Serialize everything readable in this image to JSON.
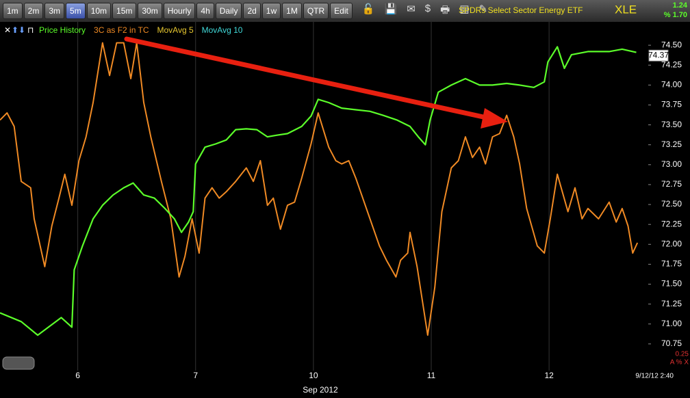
{
  "toolbar": {
    "buttons": [
      "1m",
      "2m",
      "3m",
      "5m",
      "10m",
      "15m",
      "30m",
      "Hourly",
      "4h",
      "Daily",
      "2d",
      "1w",
      "1M",
      "QTR",
      "Edit"
    ],
    "active": "5m"
  },
  "chart_data": {
    "type": "line",
    "title": "SPDRs Select Sector Energy ETF",
    "symbol": "XLE",
    "change": "1.24",
    "change_pct": "% 1.70",
    "x_label": "Sep 2012",
    "timestamp": "9/12/12 2:40",
    "lower_scale": "0.25",
    "lower_icons": "A % X",
    "last_price": 74.37,
    "grid": "x",
    "xlim": [
      0.34,
      5.83
    ],
    "xticks": [
      {
        "value": 1,
        "label": "6"
      },
      {
        "value": 2,
        "label": "7"
      },
      {
        "value": 3,
        "label": "10"
      },
      {
        "value": 4,
        "label": "11"
      },
      {
        "value": 5,
        "label": "12"
      }
    ],
    "ylim": [
      70.5,
      74.75
    ],
    "yticks": [
      {
        "value": 70.75,
        "label": "70.75"
      },
      {
        "value": 71,
        "label": "71.00"
      },
      71.25,
      {
        "value": 71.5,
        "label": "71.50"
      },
      71.75,
      {
        "value": 72,
        "label": "72.00"
      },
      72.25,
      {
        "value": 72.5,
        "label": "72.50"
      },
      72.75,
      {
        "value": 73,
        "label": "73.00"
      },
      73.25,
      {
        "value": 73.5,
        "label": "73.50"
      },
      73.75,
      {
        "value": 74,
        "label": "74.00"
      },
      74.25,
      {
        "value": 74.5,
        "label": "74.50"
      }
    ],
    "series": [
      {
        "name": "Price History",
        "color": "#5cff2a",
        "x": [
          0.34,
          0.52,
          0.66,
          0.86,
          0.95,
          0.97,
          1.04,
          1.13,
          1.21,
          1.3,
          1.39,
          1.47,
          1.56,
          1.65,
          1.74,
          1.82,
          1.88,
          1.94,
          1.98,
          2.0,
          2.08,
          2.17,
          2.26,
          2.34,
          2.43,
          2.52,
          2.61,
          2.69,
          2.78,
          2.9,
          2.98,
          3.04,
          3.13,
          3.24,
          3.36,
          3.48,
          3.59,
          3.71,
          3.82,
          3.89,
          3.95,
          3.99,
          4.06,
          4.17,
          4.29,
          4.41,
          4.52,
          4.64,
          4.75,
          4.87,
          4.96,
          4.99,
          5.07,
          5.13,
          5.19,
          5.33,
          5.51,
          5.62,
          5.74
        ],
        "values": [
          71.14,
          71.03,
          70.86,
          71.08,
          70.96,
          71.68,
          71.98,
          72.32,
          72.49,
          72.62,
          72.71,
          72.77,
          72.62,
          72.58,
          72.45,
          72.32,
          72.15,
          72.28,
          72.41,
          73.01,
          73.22,
          73.26,
          73.31,
          73.44,
          73.45,
          73.44,
          73.35,
          73.37,
          73.39,
          73.48,
          73.61,
          73.82,
          73.78,
          73.71,
          73.69,
          73.67,
          73.62,
          73.56,
          73.48,
          73.35,
          73.25,
          73.56,
          73.91,
          74.0,
          74.08,
          74.0,
          74.0,
          74.02,
          74.0,
          73.97,
          74.04,
          74.29,
          74.48,
          74.21,
          74.38,
          74.42,
          74.42,
          74.45,
          74.41
        ]
      },
      {
        "name": "3C as F2 in TC",
        "color": "#f08a24",
        "x": [
          0.34,
          0.4,
          0.46,
          0.52,
          0.6,
          0.63,
          0.72,
          0.78,
          0.84,
          0.89,
          0.95,
          1.01,
          1.07,
          1.13,
          1.21,
          1.27,
          1.33,
          1.39,
          1.45,
          1.5,
          1.56,
          1.62,
          1.71,
          1.79,
          1.86,
          1.91,
          1.97,
          2.03,
          2.08,
          2.14,
          2.2,
          2.26,
          2.34,
          2.43,
          2.49,
          2.55,
          2.61,
          2.66,
          2.72,
          2.78,
          2.84,
          2.9,
          2.98,
          3.04,
          3.13,
          3.19,
          3.24,
          3.3,
          3.36,
          3.48,
          3.56,
          3.62,
          3.7,
          3.74,
          3.8,
          3.82,
          3.88,
          3.97,
          4.03,
          4.09,
          4.17,
          4.23,
          4.29,
          4.35,
          4.41,
          4.46,
          4.52,
          4.58,
          4.64,
          4.7,
          4.75,
          4.81,
          4.9,
          4.96,
          5.01,
          5.07,
          5.16,
          5.22,
          5.28,
          5.33,
          5.42,
          5.51,
          5.57,
          5.62,
          5.67,
          5.71,
          5.75
        ],
        "values": [
          73.56,
          73.65,
          73.48,
          72.79,
          72.71,
          72.32,
          71.72,
          72.23,
          72.58,
          72.88,
          72.49,
          73.05,
          73.35,
          73.78,
          74.53,
          74.12,
          74.53,
          74.53,
          74.08,
          74.53,
          73.78,
          73.35,
          72.79,
          72.32,
          71.59,
          71.85,
          72.32,
          71.89,
          72.58,
          72.71,
          72.58,
          72.66,
          72.79,
          72.96,
          72.79,
          73.05,
          72.49,
          72.58,
          72.19,
          72.49,
          72.53,
          72.83,
          73.26,
          73.65,
          73.22,
          73.05,
          73.01,
          73.05,
          72.83,
          72.32,
          71.98,
          71.8,
          71.59,
          71.8,
          71.89,
          72.15,
          71.72,
          70.86,
          71.46,
          72.41,
          72.96,
          73.05,
          73.35,
          73.09,
          73.22,
          73.01,
          73.35,
          73.39,
          73.62,
          73.35,
          73.01,
          72.45,
          71.98,
          71.89,
          72.32,
          72.88,
          72.41,
          72.71,
          72.32,
          72.45,
          72.32,
          72.53,
          72.28,
          72.45,
          72.23,
          71.89,
          72.02
        ]
      }
    ],
    "other_legend": [
      {
        "name": "MovAvg 5",
        "color": "#e8c830"
      },
      {
        "name": "MovAvg 10",
        "color": "#40d8d8"
      }
    ]
  }
}
